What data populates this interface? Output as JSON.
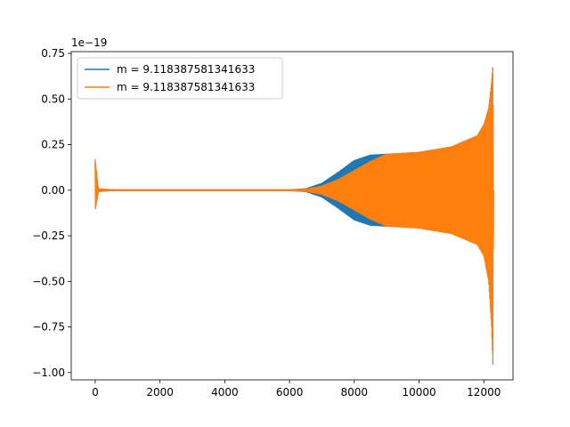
{
  "chart_data": {
    "type": "line",
    "title": "",
    "xlabel": "",
    "ylabel": "",
    "y_offset_text": "1e−19",
    "xlim": [
      -740,
      12900
    ],
    "ylim": [
      -1.04,
      0.76
    ],
    "x_ticks": [
      0,
      2000,
      4000,
      6000,
      8000,
      10000,
      12000
    ],
    "x_tick_labels": [
      "0",
      "2000",
      "4000",
      "6000",
      "8000",
      "10000",
      "12000"
    ],
    "y_ticks": [
      0.75,
      0.5,
      0.25,
      0.0,
      -0.25,
      -0.5,
      -0.75,
      -1.0
    ],
    "y_tick_labels": [
      "0.75",
      "0.50",
      "0.25",
      "0.00",
      "−0.25",
      "−0.50",
      "−0.75",
      "−1.00"
    ],
    "grid": false,
    "legend_position": "upper-left",
    "series": [
      {
        "name": "m = 9.118387581341633",
        "color": "#1f77b4",
        "x_range": [
          0,
          12300
        ],
        "envelope": [
          {
            "x": 0,
            "upper": 0.17,
            "lower": -0.11
          },
          {
            "x": 100,
            "upper": 0.01,
            "lower": -0.01
          },
          {
            "x": 500,
            "upper": 0.005,
            "lower": -0.005
          },
          {
            "x": 6000,
            "upper": 0.005,
            "lower": -0.005
          },
          {
            "x": 6500,
            "upper": 0.01,
            "lower": -0.01
          },
          {
            "x": 7000,
            "upper": 0.04,
            "lower": -0.04
          },
          {
            "x": 7500,
            "upper": 0.1,
            "lower": -0.1
          },
          {
            "x": 8000,
            "upper": 0.165,
            "lower": -0.165
          },
          {
            "x": 8500,
            "upper": 0.195,
            "lower": -0.195
          },
          {
            "x": 9000,
            "upper": 0.2,
            "lower": -0.2
          },
          {
            "x": 10000,
            "upper": 0.21,
            "lower": -0.21
          },
          {
            "x": 11000,
            "upper": 0.24,
            "lower": -0.24
          },
          {
            "x": 11800,
            "upper": 0.3,
            "lower": -0.3
          },
          {
            "x": 12000,
            "upper": 0.36,
            "lower": -0.36
          },
          {
            "x": 12150,
            "upper": 0.45,
            "lower": -0.5
          },
          {
            "x": 12240,
            "upper": 0.6,
            "lower": -0.75
          },
          {
            "x": 12280,
            "upper": 0.69,
            "lower": -0.96
          },
          {
            "x": 12300,
            "upper": 0.0,
            "lower": 0.0
          }
        ]
      },
      {
        "name": "m = 9.118387581341633",
        "color": "#ff7f0e",
        "x_range": [
          0,
          12300
        ],
        "envelope": [
          {
            "x": 0,
            "upper": 0.17,
            "lower": -0.11
          },
          {
            "x": 100,
            "upper": 0.01,
            "lower": -0.01
          },
          {
            "x": 500,
            "upper": 0.005,
            "lower": -0.005
          },
          {
            "x": 6000,
            "upper": 0.005,
            "lower": -0.005
          },
          {
            "x": 6500,
            "upper": 0.008,
            "lower": -0.008
          },
          {
            "x": 7000,
            "upper": 0.025,
            "lower": -0.025
          },
          {
            "x": 7500,
            "upper": 0.06,
            "lower": -0.06
          },
          {
            "x": 8000,
            "upper": 0.11,
            "lower": -0.11
          },
          {
            "x": 8500,
            "upper": 0.16,
            "lower": -0.16
          },
          {
            "x": 9000,
            "upper": 0.2,
            "lower": -0.2
          },
          {
            "x": 10000,
            "upper": 0.21,
            "lower": -0.21
          },
          {
            "x": 11000,
            "upper": 0.24,
            "lower": -0.24
          },
          {
            "x": 11800,
            "upper": 0.3,
            "lower": -0.3
          },
          {
            "x": 12000,
            "upper": 0.36,
            "lower": -0.36
          },
          {
            "x": 12150,
            "upper": 0.45,
            "lower": -0.5
          },
          {
            "x": 12240,
            "upper": 0.6,
            "lower": -0.75
          },
          {
            "x": 12280,
            "upper": 0.69,
            "lower": -0.96
          },
          {
            "x": 12300,
            "upper": 0.0,
            "lower": 0.0
          }
        ]
      }
    ]
  }
}
